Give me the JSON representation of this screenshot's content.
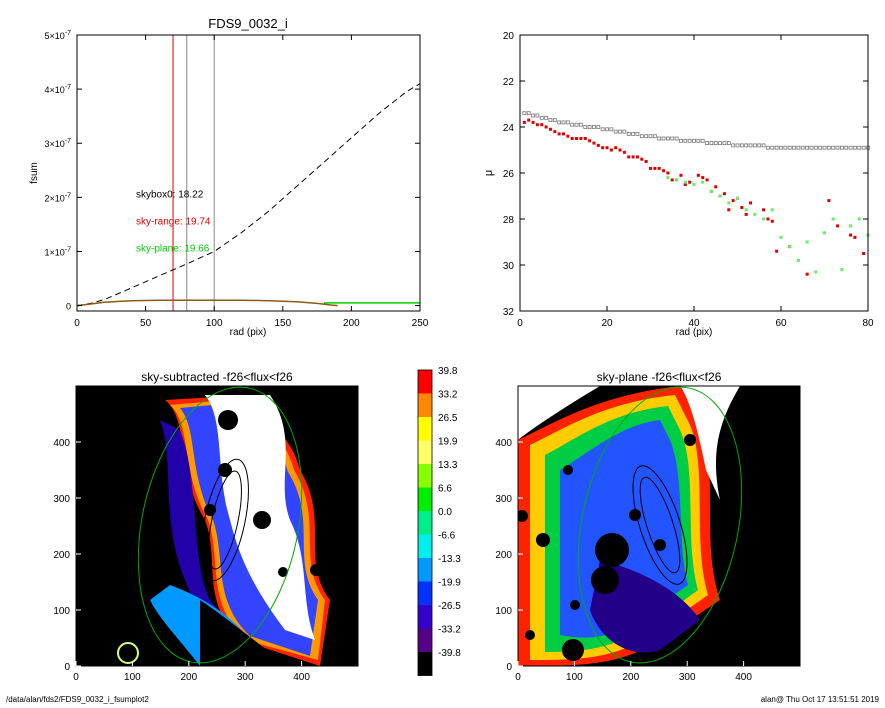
{
  "footer": {
    "left": "/data/alan/fds2/FDS9_0032_i_fsumplot2",
    "right": "alan@  Thu Oct 17 13:51:51 2019"
  },
  "chart_data": [
    {
      "type": "line",
      "title": "FDS9_0032_i",
      "xlabel": "rad (pix)",
      "ylabel": "fsum",
      "xlim": [
        0,
        250
      ],
      "ylim": [
        -1e-08,
        5e-07
      ],
      "xticks": [
        "0",
        "50",
        "100",
        "150",
        "200",
        "250"
      ],
      "ytick_mantissa": [
        "0",
        "1×10",
        "2×10",
        "3×10",
        "4×10",
        "5×10"
      ],
      "ytick_exp": [
        "",
        "-7",
        "-7",
        "-7",
        "-7",
        "-7"
      ],
      "ytick_values": [
        0,
        1e-07,
        2e-07,
        3e-07,
        4e-07,
        5e-07
      ],
      "vlines": [
        {
          "x": 70,
          "color": "#e00000"
        },
        {
          "x": 80,
          "color": "#888888"
        },
        {
          "x": 100,
          "color": "#888888"
        }
      ],
      "annotations": [
        {
          "text": "skybox0: 18.22",
          "color": "#000000",
          "x": 43,
          "y": 2e-07
        },
        {
          "text": "sky-range: 19.74",
          "color": "#e00000",
          "x": 43,
          "y": 1.5e-07
        },
        {
          "text": "sky-plane: 19.66",
          "color": "#00cc00",
          "x": 43,
          "y": 1e-07
        }
      ],
      "series": [
        {
          "style": "dashed",
          "color": "#000000",
          "x": [
            0,
            10,
            20,
            40,
            60,
            80,
            100,
            120,
            140,
            160,
            180,
            200,
            220,
            240,
            250
          ],
          "y": [
            0,
            4e-09,
            1.1e-08,
            3.3e-08,
            5.5e-08,
            7.7e-08,
            1e-07,
            1.35e-07,
            1.75e-07,
            2.2e-07,
            2.65e-07,
            3.1e-07,
            3.55e-07,
            3.95e-07,
            4.1e-07
          ]
        },
        {
          "style": "solid",
          "color": "#8b5a14",
          "x": [
            0,
            10,
            20,
            40,
            60,
            80,
            100,
            120,
            140,
            160,
            175,
            185,
            190
          ],
          "y": [
            0,
            3e-09,
            6e-09,
            9e-09,
            1e-08,
            1e-08,
            1e-08,
            1e-08,
            9e-09,
            7e-09,
            4e-09,
            1e-09,
            0
          ]
        },
        {
          "style": "solid",
          "color": "#00cc00",
          "x": [
            180,
            200,
            220,
            250
          ],
          "y": [
            5e-09,
            5e-09,
            5e-09,
            5e-09
          ]
        }
      ]
    },
    {
      "type": "scatter",
      "xlabel": "rad (pix)",
      "ylabel": "μ",
      "xlim": [
        0,
        80
      ],
      "ylim": [
        32,
        20
      ],
      "xticks": [
        "0",
        "20",
        "40",
        "60",
        "80"
      ],
      "yticks": [
        "20",
        "22",
        "24",
        "26",
        "28",
        "30",
        "32"
      ],
      "series": [
        {
          "marker": "open-square",
          "color": "#777777",
          "x": [
            1,
            2,
            3,
            4,
            5,
            6,
            7,
            8,
            9,
            10,
            11,
            12,
            13,
            14,
            15,
            16,
            17,
            18,
            19,
            20,
            21,
            22,
            23,
            24,
            25,
            26,
            27,
            28,
            29,
            30,
            31,
            32,
            33,
            34,
            35,
            36,
            37,
            38,
            39,
            40,
            41,
            42,
            43,
            44,
            45,
            46,
            47,
            48,
            49,
            50,
            51,
            52,
            53,
            54,
            55,
            56,
            57,
            58,
            59,
            60,
            61,
            62,
            63,
            64,
            65,
            66,
            67,
            68,
            69,
            70,
            71,
            72,
            73,
            74,
            75,
            76,
            77,
            78,
            79,
            80
          ],
          "y": [
            23.4,
            23.4,
            23.5,
            23.5,
            23.6,
            23.6,
            23.7,
            23.7,
            23.8,
            23.8,
            23.8,
            23.9,
            23.9,
            23.9,
            24.0,
            24.0,
            24.0,
            24.0,
            24.1,
            24.1,
            24.1,
            24.2,
            24.2,
            24.2,
            24.3,
            24.3,
            24.3,
            24.4,
            24.4,
            24.4,
            24.4,
            24.5,
            24.5,
            24.5,
            24.5,
            24.5,
            24.6,
            24.6,
            24.6,
            24.6,
            24.6,
            24.6,
            24.7,
            24.7,
            24.7,
            24.7,
            24.7,
            24.7,
            24.8,
            24.8,
            24.8,
            24.8,
            24.8,
            24.8,
            24.8,
            24.8,
            24.9,
            24.9,
            24.9,
            24.9,
            24.9,
            24.9,
            24.9,
            24.9,
            24.9,
            24.9,
            24.9,
            24.9,
            24.9,
            24.9,
            24.9,
            24.9,
            24.9,
            24.9,
            24.9,
            24.9,
            24.9,
            24.9,
            24.9,
            24.9
          ]
        },
        {
          "marker": "filled-square",
          "color": "#e00000",
          "x": [
            1,
            2,
            3,
            4,
            5,
            6,
            7,
            8,
            9,
            10,
            11,
            12,
            13,
            14,
            15,
            16,
            17,
            18,
            19,
            20,
            21,
            22,
            23,
            24,
            25,
            26,
            27,
            28,
            29,
            30,
            31,
            32,
            33,
            34,
            35,
            36,
            37,
            38,
            39,
            40,
            41,
            42,
            43,
            44,
            45,
            46,
            47,
            48,
            49,
            50,
            51,
            52,
            53,
            56,
            57,
            58,
            59,
            62,
            66,
            71,
            73,
            76,
            77,
            79
          ],
          "y": [
            23.8,
            23.7,
            23.8,
            23.9,
            23.9,
            24.0,
            24.1,
            24.2,
            24.3,
            24.3,
            24.4,
            24.5,
            24.5,
            24.5,
            24.5,
            24.6,
            24.7,
            24.8,
            24.9,
            24.9,
            25.0,
            24.9,
            25.0,
            25.1,
            25.3,
            25.3,
            25.3,
            25.4,
            25.5,
            25.8,
            25.8,
            25.8,
            25.9,
            26.0,
            26.3,
            26.3,
            26.1,
            26.5,
            26.4,
            26.5,
            26.1,
            26.2,
            26.3,
            26.8,
            26.6,
            27.0,
            26.9,
            27.6,
            27.2,
            27.1,
            27.5,
            27.8,
            27.3,
            27.6,
            28.0,
            28.1,
            29.4,
            29.2,
            30.4,
            27.2,
            28.3,
            28.7,
            28.8,
            29.5
          ]
        },
        {
          "marker": "filled-square",
          "color": "#66ee66",
          "x": [
            34,
            36,
            38,
            40,
            42,
            44,
            46,
            48,
            50,
            52,
            54,
            56,
            58,
            60,
            62,
            64,
            66,
            68,
            70,
            72,
            74,
            76,
            78,
            80
          ],
          "y": [
            26.2,
            26.3,
            26.4,
            26.5,
            26.4,
            26.8,
            27.0,
            27.3,
            27.1,
            27.6,
            27.8,
            28.0,
            27.6,
            28.8,
            29.2,
            29.8,
            29.0,
            30.3,
            28.6,
            28.0,
            30.2,
            28.3,
            28.0,
            28.7
          ]
        }
      ]
    },
    {
      "type": "heatmap",
      "title": "sky-subtracted -f26<flux<f26",
      "xlim": [
        0,
        500
      ],
      "ylim": [
        0,
        500
      ],
      "xticks": [
        "0",
        "100",
        "200",
        "300",
        "400"
      ],
      "yticks": [
        "0",
        "100",
        "200",
        "300",
        "400"
      ]
    },
    {
      "type": "heatmap",
      "title": "sky-plane -f26<flux<f26",
      "xlim": [
        0,
        500
      ],
      "ylim": [
        0,
        500
      ],
      "xticks": [
        "0",
        "100",
        "200",
        "300",
        "400"
      ],
      "yticks": [
        "0",
        "100",
        "200",
        "300",
        "400"
      ]
    },
    {
      "type": "colorbar",
      "labels": [
        "39.8",
        "33.2",
        "26.5",
        "19.9",
        "13.3",
        "6.6",
        "0.0",
        "-6.6",
        "-13.3",
        "-19.9",
        "-26.5",
        "-33.2",
        "-39.8"
      ],
      "colors": [
        "#ff0000",
        "#ff8800",
        "#ffff00",
        "#ffff66",
        "#88ff00",
        "#00ee00",
        "#00ee88",
        "#00eeee",
        "#0099ff",
        "#0033ff",
        "#3300cc",
        "#550088",
        "#000000"
      ]
    }
  ]
}
